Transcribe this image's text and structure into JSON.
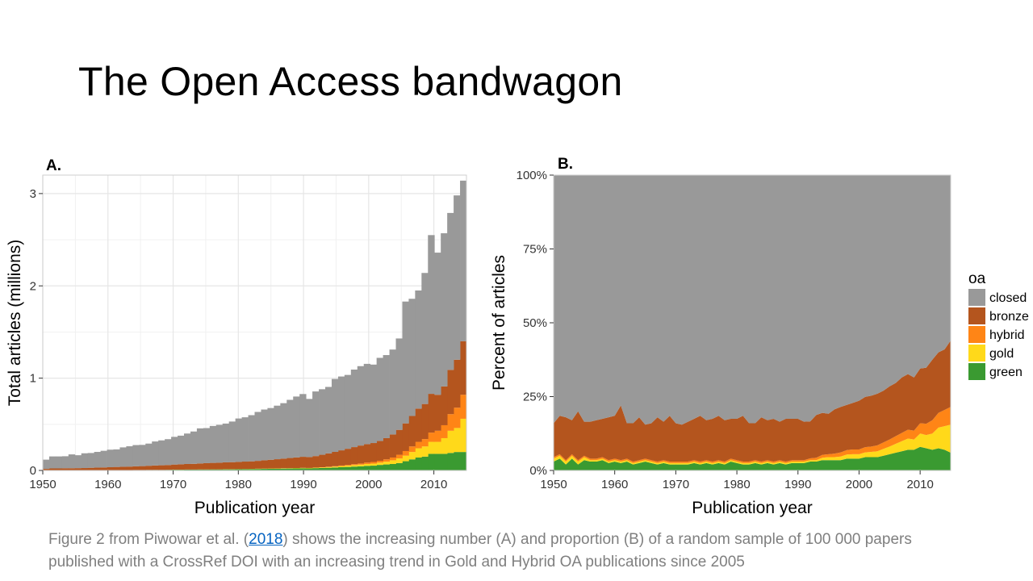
{
  "slide": {
    "title": "The Open Access bandwagon"
  },
  "caption": {
    "before": " Figure 2 from Piwowar et al. (",
    "link": "2018",
    "after": ") shows the increasing number (A) and proportion (B) of a random sample of 100 000 papers published with a CrossRef DOI with an increasing trend in Gold and Hybrid OA publications since 2005"
  },
  "legend": {
    "title": "oa",
    "items": [
      {
        "label": "closed",
        "color": "#999999"
      },
      {
        "label": "bronze",
        "color": "#b4551e"
      },
      {
        "label": "hybrid",
        "color": "#ff8516"
      },
      {
        "label": "gold",
        "color": "#ffd91a"
      },
      {
        "label": "green",
        "color": "#3a9a31"
      }
    ]
  },
  "chart_data": [
    {
      "type": "area",
      "stacked": true,
      "panel_label": "A.",
      "xlabel": "Publication year",
      "ylabel": "Total articles (millions)",
      "xlim": [
        1950,
        2015
      ],
      "ylim": [
        0,
        3.2
      ],
      "xticks": [
        1950,
        1960,
        1970,
        1980,
        1990,
        2000,
        2010
      ],
      "yticks": [
        0,
        1,
        2,
        3
      ],
      "grid": true,
      "x": [
        1950,
        1951,
        1952,
        1953,
        1954,
        1955,
        1956,
        1957,
        1958,
        1959,
        1960,
        1961,
        1962,
        1963,
        1964,
        1965,
        1966,
        1967,
        1968,
        1969,
        1970,
        1971,
        1972,
        1973,
        1974,
        1975,
        1976,
        1977,
        1978,
        1979,
        1980,
        1981,
        1982,
        1983,
        1984,
        1985,
        1986,
        1987,
        1988,
        1989,
        1990,
        1991,
        1992,
        1993,
        1994,
        1995,
        1996,
        1997,
        1998,
        1999,
        2000,
        2001,
        2002,
        2003,
        2004,
        2005,
        2006,
        2007,
        2008,
        2009,
        2010,
        2011,
        2012,
        2013,
        2014,
        2015
      ],
      "series": [
        {
          "name": "green",
          "values": [
            0.002,
            0.002,
            0.002,
            0.002,
            0.002,
            0.002,
            0.002,
            0.003,
            0.003,
            0.003,
            0.003,
            0.004,
            0.004,
            0.004,
            0.005,
            0.005,
            0.006,
            0.006,
            0.006,
            0.007,
            0.008,
            0.008,
            0.009,
            0.009,
            0.01,
            0.01,
            0.011,
            0.011,
            0.012,
            0.012,
            0.013,
            0.014,
            0.015,
            0.016,
            0.017,
            0.018,
            0.019,
            0.02,
            0.021,
            0.022,
            0.023,
            0.022,
            0.025,
            0.027,
            0.029,
            0.032,
            0.035,
            0.038,
            0.042,
            0.045,
            0.05,
            0.052,
            0.06,
            0.065,
            0.07,
            0.08,
            0.1,
            0.12,
            0.14,
            0.15,
            0.18,
            0.18,
            0.18,
            0.19,
            0.2,
            0.2
          ]
        },
        {
          "name": "gold",
          "values": [
            0.0,
            0.0,
            0.0,
            0.0,
            0.0,
            0.0,
            0.0,
            0.0,
            0.0,
            0.0,
            0.0,
            0.0,
            0.0,
            0.0,
            0.0,
            0.0,
            0.0,
            0.0,
            0.0,
            0.0,
            0.001,
            0.001,
            0.001,
            0.001,
            0.001,
            0.001,
            0.001,
            0.001,
            0.002,
            0.002,
            0.002,
            0.002,
            0.002,
            0.003,
            0.003,
            0.003,
            0.003,
            0.004,
            0.004,
            0.004,
            0.005,
            0.005,
            0.005,
            0.006,
            0.008,
            0.01,
            0.012,
            0.014,
            0.016,
            0.018,
            0.02,
            0.022,
            0.025,
            0.03,
            0.04,
            0.05,
            0.06,
            0.08,
            0.1,
            0.11,
            0.13,
            0.13,
            0.17,
            0.24,
            0.26,
            0.36
          ]
        },
        {
          "name": "hybrid",
          "values": [
            0.0,
            0.0,
            0.0,
            0.0,
            0.0,
            0.0,
            0.0,
            0.0,
            0.0,
            0.0,
            0.0,
            0.0,
            0.0,
            0.0,
            0.0,
            0.0,
            0.0,
            0.0,
            0.0,
            0.0,
            0.0,
            0.0,
            0.0,
            0.0,
            0.0,
            0.0,
            0.0,
            0.0,
            0.0,
            0.0,
            0.0,
            0.0,
            0.0,
            0.0,
            0.0,
            0.0,
            0.0,
            0.0,
            0.0,
            0.0,
            0.0,
            0.0,
            0.001,
            0.002,
            0.003,
            0.004,
            0.006,
            0.008,
            0.01,
            0.012,
            0.015,
            0.018,
            0.02,
            0.025,
            0.03,
            0.04,
            0.05,
            0.06,
            0.07,
            0.08,
            0.1,
            0.12,
            0.14,
            0.18,
            0.22,
            0.26
          ]
        },
        {
          "name": "bronze",
          "values": [
            0.015,
            0.02,
            0.02,
            0.022,
            0.022,
            0.023,
            0.024,
            0.026,
            0.028,
            0.03,
            0.032,
            0.034,
            0.036,
            0.038,
            0.04,
            0.042,
            0.045,
            0.048,
            0.05,
            0.052,
            0.055,
            0.058,
            0.06,
            0.062,
            0.065,
            0.068,
            0.07,
            0.072,
            0.074,
            0.076,
            0.078,
            0.08,
            0.082,
            0.085,
            0.09,
            0.095,
            0.1,
            0.105,
            0.11,
            0.115,
            0.12,
            0.118,
            0.125,
            0.135,
            0.145,
            0.155,
            0.165,
            0.175,
            0.185,
            0.195,
            0.2,
            0.205,
            0.215,
            0.23,
            0.25,
            0.27,
            0.3,
            0.33,
            0.36,
            0.38,
            0.42,
            0.39,
            0.42,
            0.48,
            0.52,
            0.58
          ]
        },
        {
          "name": "closed",
          "values": [
            0.1,
            0.13,
            0.13,
            0.13,
            0.15,
            0.14,
            0.16,
            0.16,
            0.17,
            0.18,
            0.19,
            0.19,
            0.21,
            0.22,
            0.23,
            0.23,
            0.24,
            0.26,
            0.27,
            0.28,
            0.3,
            0.31,
            0.33,
            0.35,
            0.38,
            0.38,
            0.4,
            0.41,
            0.42,
            0.44,
            0.47,
            0.48,
            0.5,
            0.53,
            0.55,
            0.56,
            0.58,
            0.6,
            0.63,
            0.66,
            0.68,
            0.63,
            0.7,
            0.71,
            0.72,
            0.79,
            0.8,
            0.8,
            0.84,
            0.86,
            0.87,
            0.85,
            0.9,
            0.9,
            0.92,
            0.99,
            1.32,
            1.27,
            1.28,
            1.42,
            1.72,
            1.54,
            1.66,
            1.7,
            1.78,
            1.74
          ]
        }
      ]
    },
    {
      "type": "area",
      "stacked": true,
      "panel_label": "B.",
      "xlabel": "Publication year",
      "ylabel": "Percent of articles",
      "xlim": [
        1950,
        2015
      ],
      "ylim": [
        0,
        100
      ],
      "xticks": [
        1950,
        1960,
        1970,
        1980,
        1990,
        2000,
        2010
      ],
      "yticks": [
        0,
        25,
        50,
        75,
        100
      ],
      "ytick_labels": [
        "0%",
        "25%",
        "50%",
        "75%",
        "100%"
      ],
      "grid": true,
      "x": [
        1950,
        1951,
        1952,
        1953,
        1954,
        1955,
        1956,
        1957,
        1958,
        1959,
        1960,
        1961,
        1962,
        1963,
        1964,
        1965,
        1966,
        1967,
        1968,
        1969,
        1970,
        1971,
        1972,
        1973,
        1974,
        1975,
        1976,
        1977,
        1978,
        1979,
        1980,
        1981,
        1982,
        1983,
        1984,
        1985,
        1986,
        1987,
        1988,
        1989,
        1990,
        1991,
        1992,
        1993,
        1994,
        1995,
        1996,
        1997,
        1998,
        1999,
        2000,
        2001,
        2002,
        2003,
        2004,
        2005,
        2006,
        2007,
        2008,
        2009,
        2010,
        2011,
        2012,
        2013,
        2014,
        2015
      ],
      "series": [
        {
          "name": "green",
          "values": [
            3.0,
            4.0,
            2.0,
            4.0,
            2.0,
            3.5,
            3.0,
            3.0,
            3.5,
            2.5,
            3.0,
            2.5,
            3.0,
            2.0,
            2.5,
            3.0,
            2.5,
            2.0,
            2.5,
            2.0,
            2.0,
            2.0,
            2.0,
            2.5,
            2.0,
            2.5,
            2.0,
            2.5,
            2.0,
            3.0,
            2.5,
            2.0,
            2.0,
            2.5,
            2.0,
            2.5,
            2.0,
            2.5,
            2.0,
            2.5,
            2.5,
            2.5,
            3.0,
            3.0,
            3.5,
            3.5,
            3.5,
            3.5,
            4.0,
            4.0,
            4.0,
            4.5,
            4.5,
            4.5,
            5.0,
            5.5,
            6.0,
            6.5,
            7.0,
            7.0,
            8.0,
            7.5,
            7.0,
            7.5,
            7.0,
            6.0
          ]
        },
        {
          "name": "gold",
          "values": [
            1.0,
            1.0,
            1.0,
            1.0,
            1.0,
            1.0,
            0.5,
            0.5,
            0.5,
            0.5,
            0.5,
            0.5,
            0.5,
            0.5,
            0.5,
            0.5,
            0.5,
            0.5,
            0.5,
            0.5,
            0.5,
            0.5,
            0.5,
            0.5,
            0.5,
            0.5,
            0.5,
            0.5,
            0.5,
            0.5,
            0.5,
            0.5,
            0.5,
            0.5,
            0.5,
            0.5,
            0.5,
            0.5,
            0.5,
            0.5,
            0.5,
            0.5,
            0.5,
            0.5,
            0.8,
            1.0,
            1.0,
            1.2,
            1.4,
            1.5,
            1.5,
            1.6,
            1.8,
            2.0,
            2.3,
            2.6,
            3.0,
            3.4,
            3.8,
            3.5,
            4.5,
            4.5,
            5.5,
            7.0,
            8.0,
            9.5
          ]
        },
        {
          "name": "hybrid",
          "values": [
            0.5,
            0.5,
            0.5,
            0.5,
            0.5,
            0.5,
            0.5,
            0.5,
            0.5,
            0.5,
            0.5,
            0.5,
            0.5,
            0.5,
            0.5,
            0.5,
            0.5,
            0.5,
            0.5,
            0.5,
            0.5,
            0.5,
            0.5,
            0.5,
            0.5,
            0.5,
            0.5,
            0.5,
            0.5,
            0.5,
            0.5,
            0.5,
            0.5,
            0.5,
            0.5,
            0.5,
            0.5,
            0.5,
            0.5,
            0.5,
            0.5,
            0.5,
            0.6,
            0.8,
            1.0,
            1.0,
            1.2,
            1.4,
            1.5,
            1.6,
            1.6,
            1.8,
            1.8,
            2.0,
            2.2,
            2.4,
            2.6,
            2.8,
            3.0,
            3.0,
            3.5,
            3.8,
            4.5,
            5.0,
            5.5,
            6.0
          ]
        },
        {
          "name": "bronze",
          "values": [
            11.5,
            13.0,
            14.5,
            11.5,
            16.5,
            11.5,
            12.5,
            13.0,
            13.0,
            14.5,
            14.5,
            18.5,
            12.0,
            13.0,
            14.5,
            11.5,
            12.5,
            15.0,
            13.0,
            15.5,
            13.0,
            12.5,
            13.5,
            14.0,
            15.5,
            13.5,
            14.5,
            15.0,
            14.0,
            13.5,
            14.0,
            15.5,
            13.0,
            12.5,
            15.0,
            13.5,
            14.5,
            13.0,
            14.5,
            14.0,
            14.0,
            13.0,
            12.5,
            14.5,
            14.2,
            13.7,
            15.0,
            15.4,
            15.3,
            15.8,
            16.5,
            17.0,
            17.2,
            17.5,
            17.5,
            18.0,
            18.0,
            18.8,
            18.8,
            18.0,
            18.5,
            19.0,
            20.5,
            20.5,
            20.5,
            22.5
          ]
        },
        {
          "name": "closed",
          "values": [
            84.0,
            81.5,
            82.0,
            83.0,
            80.0,
            83.5,
            83.5,
            83.0,
            82.5,
            82.0,
            81.5,
            78.0,
            84.0,
            84.0,
            82.0,
            84.5,
            84.0,
            82.0,
            83.5,
            81.5,
            84.0,
            84.5,
            83.5,
            82.5,
            81.5,
            83.0,
            82.5,
            81.5,
            83.0,
            82.5,
            82.5,
            81.5,
            84.0,
            84.0,
            82.0,
            83.0,
            82.5,
            83.5,
            82.5,
            82.5,
            82.5,
            83.5,
            83.4,
            81.2,
            80.5,
            80.8,
            79.3,
            78.5,
            77.8,
            77.1,
            76.4,
            75.1,
            74.7,
            74.0,
            73.0,
            71.5,
            70.4,
            68.5,
            67.4,
            68.5,
            65.5,
            65.2,
            62.5,
            60.0,
            59.0,
            56.0
          ]
        }
      ]
    }
  ]
}
